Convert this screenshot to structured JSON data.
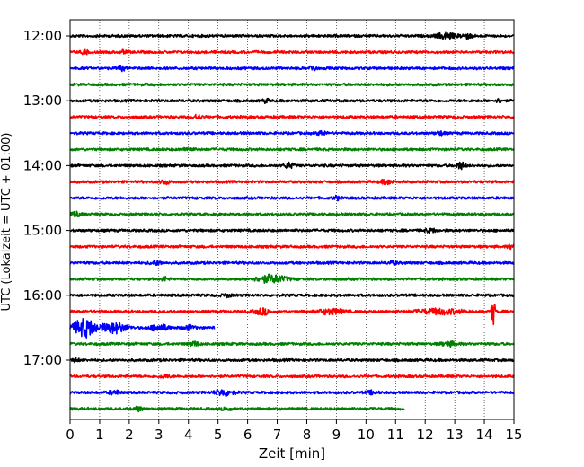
{
  "chart_data": {
    "type": "line",
    "title": "",
    "xlabel": "Zeit  [min]",
    "ylabel": "UTC (Lokalzeit = UTC + 01:00)",
    "xlim": [
      0,
      15
    ],
    "xticks": [
      0,
      1,
      2,
      3,
      4,
      5,
      6,
      7,
      8,
      9,
      10,
      11,
      12,
      13,
      14,
      15
    ],
    "yticks": [
      {
        "label": "12:00",
        "row": 0
      },
      {
        "label": "13:00",
        "row": 4
      },
      {
        "label": "14:00",
        "row": 8
      },
      {
        "label": "15:00",
        "row": 12
      },
      {
        "label": "16:00",
        "row": 16
      },
      {
        "label": "17:00",
        "row": 20
      }
    ],
    "grid": "vertical dotted",
    "row_interval_minutes": 15,
    "row_colors": [
      "#000000",
      "#ff0000",
      "#0000ff",
      "#008000"
    ],
    "traces": [
      {
        "start": "12:00",
        "color": "#000000",
        "end_min": 15,
        "events": [
          {
            "t": 12.7,
            "amp": 1.4,
            "dur": 0.6
          },
          {
            "t": 13.4,
            "amp": 1.1,
            "dur": 0.4
          }
        ]
      },
      {
        "start": "12:15",
        "color": "#ff0000",
        "end_min": 15,
        "events": [
          {
            "t": 0.5,
            "amp": 1.0,
            "dur": 0.2
          },
          {
            "t": 1.8,
            "amp": 0.8,
            "dur": 0.2
          }
        ]
      },
      {
        "start": "12:30",
        "color": "#0000ff",
        "end_min": 15,
        "events": [
          {
            "t": 1.7,
            "amp": 1.2,
            "dur": 0.3
          },
          {
            "t": 8.2,
            "amp": 1.5,
            "dur": 0.2
          }
        ]
      },
      {
        "start": "12:45",
        "color": "#008000",
        "end_min": 15,
        "events": []
      },
      {
        "start": "13:00",
        "color": "#000000",
        "end_min": 15,
        "events": [
          {
            "t": 6.6,
            "amp": 1.0,
            "dur": 0.2
          },
          {
            "t": 14.5,
            "amp": 0.8,
            "dur": 0.2
          }
        ]
      },
      {
        "start": "13:15",
        "color": "#ff0000",
        "end_min": 15,
        "events": [
          {
            "t": 4.3,
            "amp": 1.0,
            "dur": 0.3
          }
        ]
      },
      {
        "start": "13:30",
        "color": "#0000ff",
        "end_min": 15,
        "events": [
          {
            "t": 8.5,
            "amp": 0.9,
            "dur": 0.3
          },
          {
            "t": 12.5,
            "amp": 0.8,
            "dur": 0.3
          }
        ]
      },
      {
        "start": "13:45",
        "color": "#008000",
        "end_min": 15,
        "events": [
          {
            "t": 4.0,
            "amp": 0.8,
            "dur": 0.3
          }
        ]
      },
      {
        "start": "14:00",
        "color": "#000000",
        "end_min": 15,
        "events": [
          {
            "t": 7.4,
            "amp": 1.3,
            "dur": 0.3
          },
          {
            "t": 13.2,
            "amp": 1.6,
            "dur": 0.3
          }
        ]
      },
      {
        "start": "14:15",
        "color": "#ff0000",
        "end_min": 15,
        "events": [
          {
            "t": 3.2,
            "amp": 1.0,
            "dur": 0.3
          },
          {
            "t": 10.7,
            "amp": 1.0,
            "dur": 0.4
          }
        ]
      },
      {
        "start": "14:30",
        "color": "#0000ff",
        "end_min": 15,
        "events": [
          {
            "t": 9.0,
            "amp": 1.0,
            "dur": 0.2
          }
        ]
      },
      {
        "start": "14:45",
        "color": "#008000",
        "end_min": 15,
        "events": [
          {
            "t": 0.2,
            "amp": 1.0,
            "dur": 0.3
          }
        ]
      },
      {
        "start": "15:00",
        "color": "#000000",
        "end_min": 15,
        "events": [
          {
            "t": 12.2,
            "amp": 0.8,
            "dur": 0.4
          }
        ]
      },
      {
        "start": "15:15",
        "color": "#ff0000",
        "end_min": 15,
        "events": [
          {
            "t": 14.9,
            "amp": 0.8,
            "dur": 0.2
          }
        ]
      },
      {
        "start": "15:30",
        "color": "#0000ff",
        "end_min": 15,
        "events": [
          {
            "t": 2.9,
            "amp": 0.9,
            "dur": 0.4
          },
          {
            "t": 10.9,
            "amp": 0.8,
            "dur": 0.3
          }
        ]
      },
      {
        "start": "15:45",
        "color": "#008000",
        "end_min": 15,
        "events": [
          {
            "t": 6.8,
            "amp": 1.8,
            "dur": 1.0
          },
          {
            "t": 3.2,
            "amp": 1.0,
            "dur": 0.2
          }
        ]
      },
      {
        "start": "16:00",
        "color": "#000000",
        "end_min": 15,
        "events": [
          {
            "t": 5.3,
            "amp": 0.7,
            "dur": 0.3
          }
        ]
      },
      {
        "start": "16:15",
        "color": "#ff0000",
        "end_min": 15,
        "events": [
          {
            "t": 6.5,
            "amp": 1.4,
            "dur": 0.5
          },
          {
            "t": 8.8,
            "amp": 1.3,
            "dur": 0.8
          },
          {
            "t": 12.5,
            "amp": 1.2,
            "dur": 1.5
          },
          {
            "t": 14.3,
            "amp": 7.0,
            "dur": 0.12
          }
        ]
      },
      {
        "start": "16:30",
        "color": "#0000ff",
        "end_min": 4.9,
        "events": [
          {
            "t": 0.5,
            "amp": 4.5,
            "dur": 0.8
          },
          {
            "t": 1.5,
            "amp": 2.5,
            "dur": 0.8
          },
          {
            "t": 3.0,
            "amp": 1.5,
            "dur": 0.6
          },
          {
            "t": 4.0,
            "amp": 1.0,
            "dur": 0.4
          }
        ]
      },
      {
        "start": "16:45",
        "color": "#008000",
        "end_min": 15,
        "events": [
          {
            "t": 4.2,
            "amp": 1.0,
            "dur": 0.3
          },
          {
            "t": 12.8,
            "amp": 1.0,
            "dur": 0.5
          }
        ]
      },
      {
        "start": "17:00",
        "color": "#000000",
        "end_min": 15,
        "events": [
          {
            "t": 0.2,
            "amp": 0.9,
            "dur": 0.2
          }
        ]
      },
      {
        "start": "17:15",
        "color": "#ff0000",
        "end_min": 15,
        "events": [
          {
            "t": 3.2,
            "amp": 0.8,
            "dur": 0.3
          }
        ]
      },
      {
        "start": "17:30",
        "color": "#0000ff",
        "end_min": 15,
        "events": [
          {
            "t": 5.2,
            "amp": 1.5,
            "dur": 0.6
          },
          {
            "t": 1.5,
            "amp": 0.9,
            "dur": 0.4
          },
          {
            "t": 10.2,
            "amp": 0.7,
            "dur": 0.4
          }
        ]
      },
      {
        "start": "17:45",
        "color": "#008000",
        "end_min": 11.3,
        "events": [
          {
            "t": 2.3,
            "amp": 1.0,
            "dur": 0.3
          },
          {
            "t": 5.3,
            "amp": 0.8,
            "dur": 0.3
          }
        ]
      }
    ]
  }
}
